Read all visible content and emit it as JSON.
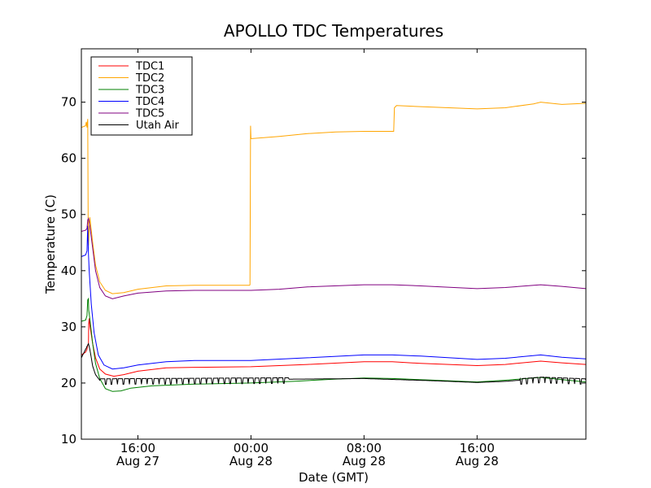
{
  "chart_data": {
    "type": "line",
    "title": "APOLLO TDC Temperatures",
    "xlabel": "Date (GMT)",
    "ylabel": "Temperature (C)",
    "x_unit": "hours since Aug 27 08:00 GMT",
    "xlim": [
      0,
      35.7
    ],
    "ylim": [
      10,
      79.5
    ],
    "yticks": [
      10,
      20,
      30,
      40,
      50,
      60,
      70
    ],
    "xticks": [
      {
        "x": 4,
        "line1": "16:00",
        "line2": "Aug 27"
      },
      {
        "x": 12,
        "line1": "00:00",
        "line2": "Aug 28"
      },
      {
        "x": 20,
        "line1": "08:00",
        "line2": "Aug 28"
      },
      {
        "x": 28,
        "line1": "16:00",
        "line2": "Aug 28"
      }
    ],
    "legend_position": "top-left",
    "series": [
      {
        "name": "TDC1",
        "color": "#ff0000",
        "points": [
          [
            0,
            25
          ],
          [
            0.3,
            25.5
          ],
          [
            0.4,
            26
          ],
          [
            0.45,
            26.8
          ],
          [
            0.5,
            27
          ],
          [
            0.52,
            30.5
          ],
          [
            0.55,
            31.5
          ],
          [
            0.6,
            30.3
          ],
          [
            0.8,
            27
          ],
          [
            1.0,
            24.5
          ],
          [
            1.3,
            22.5
          ],
          [
            1.7,
            21.6
          ],
          [
            2.3,
            21.2
          ],
          [
            3,
            21.5
          ],
          [
            4,
            22.1
          ],
          [
            6,
            22.7
          ],
          [
            8,
            22.8
          ],
          [
            12,
            22.9
          ],
          [
            16,
            23.3
          ],
          [
            20,
            23.8
          ],
          [
            22,
            23.8
          ],
          [
            24,
            23.5
          ],
          [
            28,
            23.1
          ],
          [
            30,
            23.3
          ],
          [
            32.5,
            23.9
          ],
          [
            34,
            23.6
          ],
          [
            35.7,
            23.3
          ]
        ]
      },
      {
        "name": "TDC2",
        "color": "#ffa500",
        "points": [
          [
            0,
            65.5
          ],
          [
            0.3,
            65.8
          ],
          [
            0.35,
            66.5
          ],
          [
            0.4,
            65.5
          ],
          [
            0.45,
            67
          ],
          [
            0.48,
            50
          ],
          [
            0.5,
            44.5
          ],
          [
            0.6,
            49.5
          ],
          [
            0.8,
            45
          ],
          [
            1.0,
            41
          ],
          [
            1.3,
            38
          ],
          [
            1.7,
            36.5
          ],
          [
            2.2,
            35.9
          ],
          [
            3,
            36.1
          ],
          [
            4,
            36.7
          ],
          [
            6,
            37.3
          ],
          [
            8,
            37.4
          ],
          [
            11.9,
            37.4
          ],
          [
            11.93,
            37.5
          ],
          [
            11.97,
            65.8
          ],
          [
            12,
            63.5
          ],
          [
            14,
            63.9
          ],
          [
            16,
            64.4
          ],
          [
            18,
            64.7
          ],
          [
            20,
            64.8
          ],
          [
            22.1,
            64.8
          ],
          [
            22.15,
            69
          ],
          [
            22.3,
            69.4
          ],
          [
            24,
            69.2
          ],
          [
            26,
            69
          ],
          [
            28,
            68.8
          ],
          [
            30,
            69
          ],
          [
            32,
            69.7
          ],
          [
            32.5,
            70
          ],
          [
            34,
            69.6
          ],
          [
            35.7,
            69.8
          ]
        ]
      },
      {
        "name": "TDC3",
        "color": "#008000",
        "points": [
          [
            0,
            31
          ],
          [
            0.3,
            31.2
          ],
          [
            0.4,
            32
          ],
          [
            0.45,
            34.8
          ],
          [
            0.5,
            35
          ],
          [
            0.52,
            33
          ],
          [
            0.6,
            31.5
          ],
          [
            0.8,
            27
          ],
          [
            1.0,
            23.5
          ],
          [
            1.3,
            20.8
          ],
          [
            1.7,
            19
          ],
          [
            2.2,
            18.5
          ],
          [
            2.8,
            18.6
          ],
          [
            3.5,
            19.1
          ],
          [
            5,
            19.5
          ],
          [
            8,
            19.8
          ],
          [
            12,
            20
          ],
          [
            15,
            20.3
          ],
          [
            18,
            20.7
          ],
          [
            20,
            20.9
          ],
          [
            22,
            20.8
          ],
          [
            25,
            20.5
          ],
          [
            28,
            20.2
          ],
          [
            30,
            20.5
          ],
          [
            32.5,
            21
          ],
          [
            34,
            20.6
          ],
          [
            35.7,
            20.2
          ]
        ]
      },
      {
        "name": "TDC4",
        "color": "#0000ff",
        "points": [
          [
            0,
            42.5
          ],
          [
            0.3,
            42.8
          ],
          [
            0.4,
            43.5
          ],
          [
            0.45,
            48
          ],
          [
            0.5,
            43
          ],
          [
            0.55,
            40
          ],
          [
            0.7,
            34
          ],
          [
            0.9,
            29
          ],
          [
            1.2,
            25
          ],
          [
            1.6,
            23.2
          ],
          [
            2.2,
            22.5
          ],
          [
            3,
            22.7
          ],
          [
            4,
            23.2
          ],
          [
            6,
            23.8
          ],
          [
            8,
            24
          ],
          [
            12,
            24
          ],
          [
            16,
            24.5
          ],
          [
            20,
            25
          ],
          [
            22,
            25
          ],
          [
            24,
            24.8
          ],
          [
            28,
            24.2
          ],
          [
            30,
            24.4
          ],
          [
            32.5,
            25
          ],
          [
            34,
            24.6
          ],
          [
            35.7,
            24.3
          ]
        ]
      },
      {
        "name": "TDC5",
        "color": "#800080",
        "points": [
          [
            0,
            47
          ],
          [
            0.3,
            47.2
          ],
          [
            0.4,
            47.5
          ],
          [
            0.45,
            49
          ],
          [
            0.5,
            49.3
          ],
          [
            0.6,
            48
          ],
          [
            0.8,
            44
          ],
          [
            1.0,
            40
          ],
          [
            1.3,
            37
          ],
          [
            1.7,
            35.5
          ],
          [
            2.2,
            35
          ],
          [
            3,
            35.5
          ],
          [
            4,
            36
          ],
          [
            6,
            36.4
          ],
          [
            8,
            36.5
          ],
          [
            12,
            36.5
          ],
          [
            14,
            36.7
          ],
          [
            16,
            37.1
          ],
          [
            20,
            37.5
          ],
          [
            22,
            37.5
          ],
          [
            24,
            37.3
          ],
          [
            28,
            36.8
          ],
          [
            30,
            37
          ],
          [
            32.5,
            37.5
          ],
          [
            34,
            37.2
          ],
          [
            35.7,
            36.8
          ]
        ]
      },
      {
        "name": "Utah Air",
        "color": "#000000",
        "points": [
          [
            0,
            24.5
          ],
          [
            0.3,
            26
          ],
          [
            0.5,
            27
          ],
          [
            0.6,
            26
          ],
          [
            0.8,
            23
          ],
          [
            1.0,
            21.5
          ],
          [
            1.3,
            20.5
          ],
          [
            15.5,
            20.7
          ],
          [
            20,
            20.8
          ],
          [
            25,
            20.4
          ],
          [
            28,
            20.1
          ],
          [
            30,
            20.3
          ],
          [
            32.5,
            20.8
          ],
          [
            35.7,
            20.5
          ]
        ]
      }
    ]
  }
}
